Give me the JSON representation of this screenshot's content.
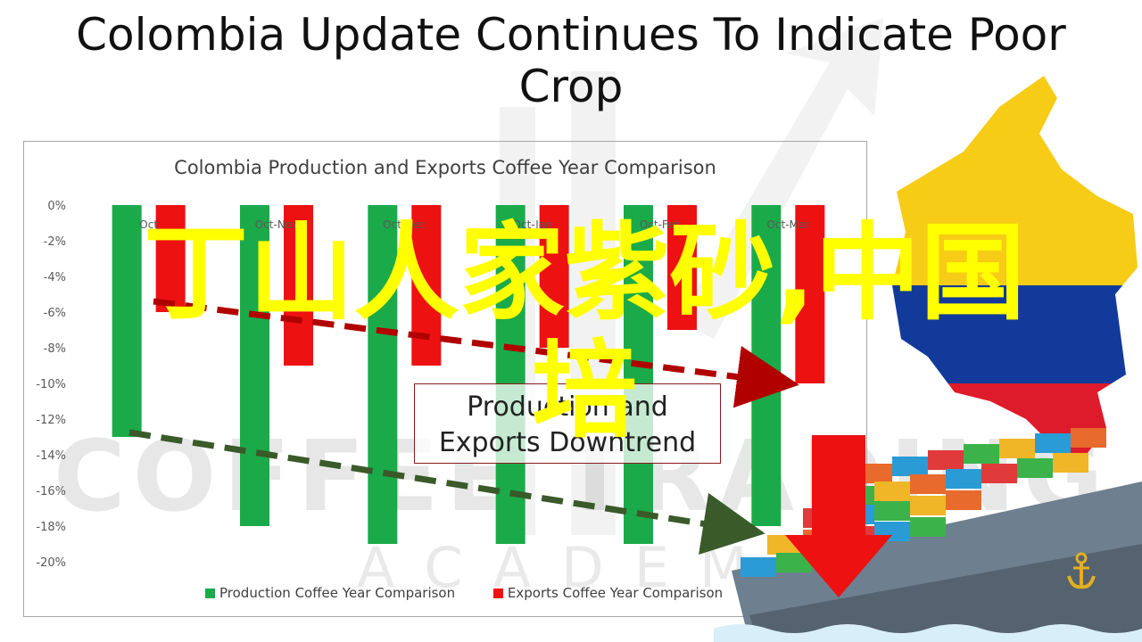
{
  "slide": {
    "title": "Colombia Update Continues To Indicate Poor Crop"
  },
  "chart_data": {
    "type": "bar",
    "title": "Colombia Production and Exports Coffee Year Comparison",
    "categories": [
      "Oct",
      "Oct-Nov",
      "Oct-Dec",
      "Oct-Jan",
      "Oct-Feb",
      "Oct-Mar"
    ],
    "series": [
      {
        "name": "Production Coffee Year Comparison",
        "color": "#1aaa4a",
        "values": [
          -13,
          -18,
          -19,
          -19,
          -19,
          -18
        ]
      },
      {
        "name": "Exports Coffee Year Comparison",
        "color": "#ee1111",
        "values": [
          -6,
          -9,
          -9,
          -8,
          -7,
          -10
        ]
      }
    ],
    "ylim": [
      -20,
      0
    ],
    "yticks": [
      "0%",
      "-2%",
      "-4%",
      "-6%",
      "-8%",
      "-10%",
      "-12%",
      "-14%",
      "-16%",
      "-18%",
      "-20%"
    ],
    "grid": false,
    "legend_position": "bottom"
  },
  "annotation": {
    "line1": "Production and",
    "line2": "Exports Downtrend"
  },
  "overlay": {
    "line1": "丁山人家紫砂,中国",
    "line2": "培"
  },
  "watermark": {
    "brand": "COFFEE TRADING",
    "sub": "ACADEMY"
  },
  "colors": {
    "production": "#1aaa4a",
    "exports": "#ee1111",
    "trend_red": "#b00000",
    "trend_green": "#3a5a2a",
    "overlay_text": "#ffff00"
  }
}
